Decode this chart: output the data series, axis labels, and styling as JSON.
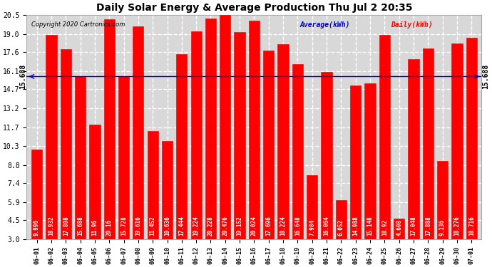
{
  "title": "Daily Solar Energy & Average Production Thu Jul 2 20:35",
  "copyright": "Copyright 2020 Cartronics.com",
  "legend_average": "Average(kWh)",
  "legend_daily": "Daily(kWh)",
  "average_value": 15.688,
  "categories": [
    "06-01",
    "06-02",
    "06-03",
    "06-04",
    "06-05",
    "06-06",
    "06-07",
    "06-08",
    "06-09",
    "06-10",
    "06-11",
    "06-12",
    "06-13",
    "06-14",
    "06-15",
    "06-16",
    "06-17",
    "06-18",
    "06-19",
    "06-20",
    "06-21",
    "06-22",
    "06-23",
    "06-24",
    "06-25",
    "06-26",
    "06-27",
    "06-28",
    "06-29",
    "06-30",
    "07-01"
  ],
  "values": [
    9.996,
    18.932,
    17.808,
    15.688,
    11.96,
    20.16,
    15.728,
    19.616,
    11.452,
    10.636,
    17.444,
    19.224,
    20.228,
    20.476,
    19.152,
    20.024,
    17.696,
    18.224,
    16.648,
    7.984,
    16.064,
    6.052,
    14.988,
    15.148,
    18.92,
    4.608,
    17.048,
    17.888,
    9.136,
    18.276,
    18.716
  ],
  "bar_color": "#ff0000",
  "bar_edge_color": "#dd0000",
  "average_line_color": "#0000cc",
  "title_color": "#000000",
  "copyright_color": "#000000",
  "background_color": "#ffffff",
  "plot_bg_color": "#d8d8d8",
  "ylim": [
    3.0,
    20.5
  ],
  "yticks": [
    3.0,
    4.5,
    5.9,
    7.4,
    8.8,
    10.3,
    11.7,
    13.2,
    14.7,
    16.1,
    17.6,
    19.0,
    20.5
  ],
  "grid_color": "#ffffff",
  "grid_style": "--",
  "value_fontsize": 5.5,
  "value_color": "#ffffff",
  "bar_width": 0.75,
  "title_fontsize": 10,
  "avg_label_fontsize": 7,
  "tick_fontsize": 7,
  "xlabel_fontsize": 6,
  "legend_fontsize": 7
}
